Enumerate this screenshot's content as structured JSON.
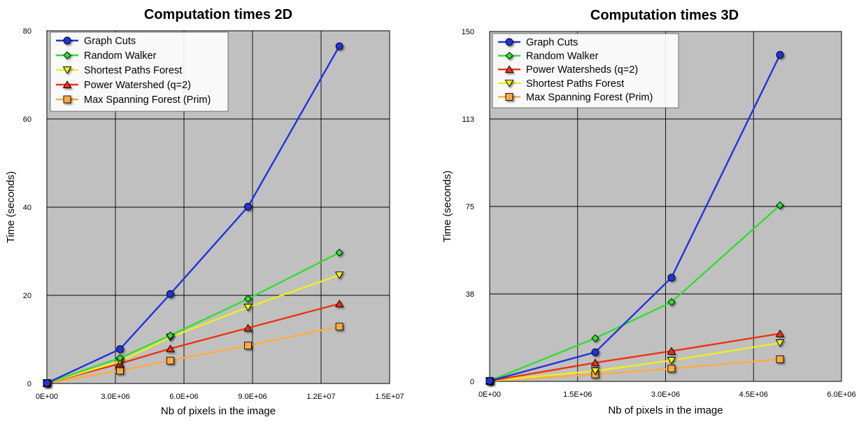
{
  "chart_data": [
    {
      "type": "line",
      "title": "Computation times 2D",
      "xlabel": "Nb of pixels in the image",
      "ylabel": "Time (seconds)",
      "xlim": [
        0,
        15000000
      ],
      "ylim": [
        0,
        80
      ],
      "x_ticks": [
        0,
        3000000,
        6000000,
        9000000,
        12000000,
        15000000
      ],
      "x_tick_labels": [
        "0E+00",
        "3.0E+06",
        "6.0E+06",
        "9.0E+06",
        "1.2E+07",
        "1.5E+07"
      ],
      "y_ticks": [
        0,
        20,
        40,
        60,
        80
      ],
      "y_tick_labels": [
        "0",
        "20",
        "40",
        "60",
        "80"
      ],
      "grid": true,
      "legend_position": "top-left",
      "plot_background": "#c0c0c0",
      "series": [
        {
          "name": "Graph Cuts",
          "color": "#2233dd",
          "marker": "circle",
          "x": [
            0,
            3200000,
            5400000,
            8800000,
            12800000
          ],
          "y": [
            0.1,
            7.8,
            20.3,
            40.1,
            76.5
          ]
        },
        {
          "name": "Random Walker",
          "color": "#33dd33",
          "marker": "diamond",
          "x": [
            0,
            3200000,
            5400000,
            8800000,
            12800000
          ],
          "y": [
            0.1,
            5.8,
            10.9,
            19.2,
            29.7
          ]
        },
        {
          "name": "Shortest Paths Forest",
          "color": "#eeee22",
          "marker": "triangle-down",
          "x": [
            0,
            3200000,
            5400000,
            8800000,
            12800000
          ],
          "y": [
            0.1,
            5.0,
            10.5,
            17.3,
            24.6
          ]
        },
        {
          "name": "Power Watershed (q=2)",
          "color": "#ee3311",
          "marker": "triangle-up",
          "x": [
            0,
            3200000,
            5400000,
            8800000,
            12800000
          ],
          "y": [
            0.1,
            4.5,
            7.9,
            12.6,
            18.1
          ]
        },
        {
          "name": "Max Spanning Forest (Prim)",
          "color": "#ffaa44",
          "marker": "square",
          "x": [
            0,
            3200000,
            5400000,
            8800000,
            12800000
          ],
          "y": [
            0.1,
            2.9,
            5.2,
            8.6,
            12.9
          ]
        }
      ]
    },
    {
      "type": "line",
      "title": "Computation times 3D",
      "xlabel": "Nb of pixels in the image",
      "ylabel": "Time (seconds)",
      "xlim": [
        0,
        6000000
      ],
      "ylim": [
        0,
        150
      ],
      "x_ticks": [
        0,
        1500000,
        3000000,
        4500000,
        6000000
      ],
      "x_tick_labels": [
        "0E+00",
        "1.5E+06",
        "3.0E+06",
        "4.5E+06",
        "6.0E+06"
      ],
      "y_ticks": [
        0,
        37.5,
        75,
        112.5,
        150
      ],
      "y_tick_labels": [
        "0",
        "38",
        "75",
        "113",
        "150"
      ],
      "grid": true,
      "legend_position": "top-left",
      "plot_background": "#c0c0c0",
      "series": [
        {
          "name": "Graph Cuts",
          "color": "#2233dd",
          "marker": "circle",
          "x": [
            0,
            1800000,
            3100000,
            4950000
          ],
          "y": [
            0.2,
            12.5,
            44.5,
            140
          ]
        },
        {
          "name": "Random Walker",
          "color": "#33dd33",
          "marker": "diamond",
          "x": [
            0,
            1800000,
            3100000,
            4950000
          ],
          "y": [
            0.2,
            18.5,
            34,
            75.5
          ]
        },
        {
          "name": "Power Watersheds (q=2)",
          "color": "#ee3311",
          "marker": "triangle-up",
          "x": [
            0,
            1800000,
            3100000,
            4950000
          ],
          "y": [
            0.2,
            8,
            13,
            20.5
          ]
        },
        {
          "name": "Shortest Paths Forest",
          "color": "#eeee22",
          "marker": "triangle-down",
          "x": [
            0,
            1800000,
            3100000,
            4950000
          ],
          "y": [
            0.2,
            4.5,
            9,
            16.5
          ]
        },
        {
          "name": "Max Spanning Forest (Prim)",
          "color": "#ffaa44",
          "marker": "square",
          "x": [
            0,
            1800000,
            3100000,
            4950000
          ],
          "y": [
            0.2,
            3,
            5.5,
            9.5
          ]
        }
      ]
    }
  ]
}
